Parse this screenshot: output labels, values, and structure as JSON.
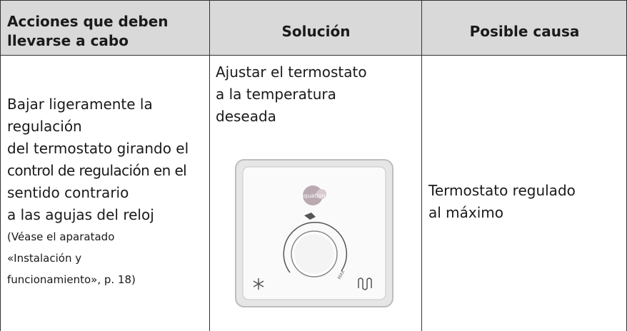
{
  "table": {
    "headers": [
      [
        "Acciones que deben",
        "llevarse a cabo"
      ],
      [
        "Solución"
      ],
      [
        "Posible causa"
      ]
    ],
    "rows": [
      [
        [
          "Bajar ligeramente la",
          "regulación",
          "del termostato girando el",
          "control de regulación en el",
          "sentido contrario",
          "a las agujas del reloj"
        ],
        [
          "Ajustar el termostato",
          "a la temperatura",
          "deseada"
        ],
        [
          "Termostato regulado",
          "al máximo"
        ]
      ]
    ],
    "note": [
      "(Véase el aparatado",
      "«Instalación y",
      "funcionamiento», p. 18)"
    ],
    "image": {
      "logo": "equation",
      "dial": "MAX"
    }
  }
}
